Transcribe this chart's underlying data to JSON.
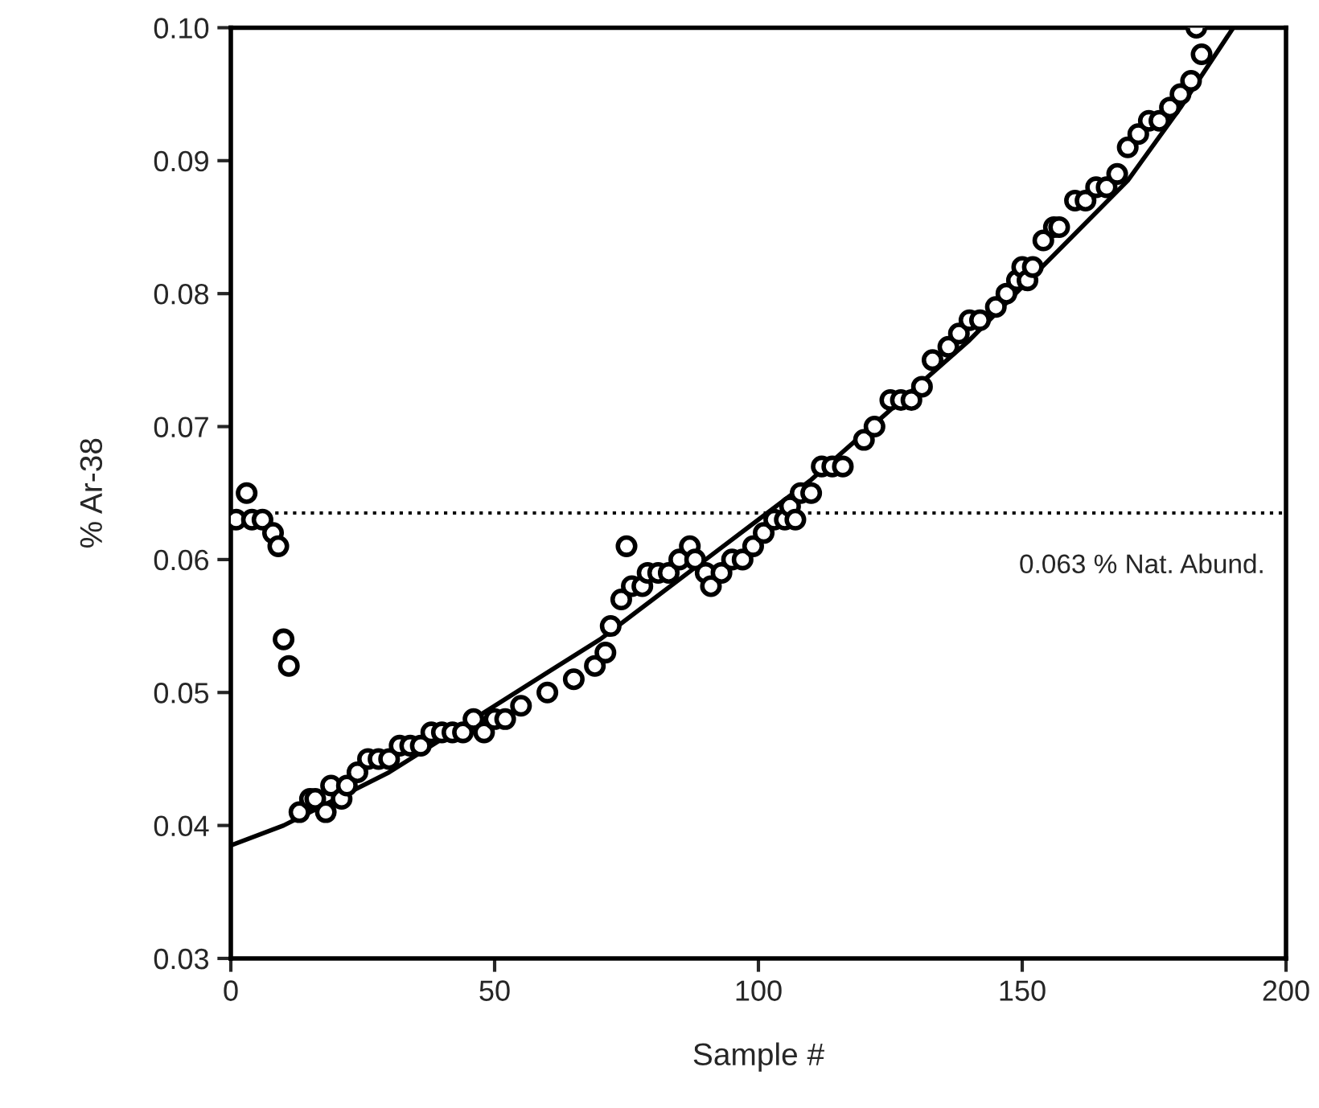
{
  "chart_data": {
    "type": "scatter",
    "xlabel": "Sample #",
    "ylabel": "% Ar-38",
    "series": [
      {
        "color": "#000000",
        "marker": "circle",
        "x": [
          1,
          3,
          4,
          6,
          8,
          9,
          10,
          11,
          13,
          15,
          16,
          18,
          19,
          21,
          22,
          24,
          26,
          28,
          30,
          32,
          34,
          36,
          38,
          40,
          42,
          44,
          46,
          48,
          50,
          52,
          55,
          60,
          65,
          69,
          71,
          72,
          74,
          75,
          76,
          78,
          79,
          81,
          83,
          85,
          87,
          88,
          90,
          91,
          93,
          95,
          97,
          99,
          101,
          103,
          105,
          106,
          107,
          108,
          110,
          112,
          114,
          116,
          120,
          122,
          125,
          127,
          129,
          131,
          133,
          136,
          138,
          140,
          142,
          145,
          147,
          149,
          150,
          151,
          152,
          154,
          156,
          157,
          160,
          162,
          164,
          166,
          168,
          170,
          172,
          174,
          176,
          178,
          180,
          182,
          183,
          184
        ],
        "values": [
          0.063,
          0.065,
          0.063,
          0.063,
          0.062,
          0.061,
          0.054,
          0.052,
          0.041,
          0.042,
          0.042,
          0.041,
          0.043,
          0.042,
          0.043,
          0.044,
          0.045,
          0.045,
          0.045,
          0.046,
          0.046,
          0.046,
          0.047,
          0.047,
          0.047,
          0.047,
          0.048,
          0.047,
          0.048,
          0.048,
          0.049,
          0.05,
          0.051,
          0.052,
          0.053,
          0.055,
          0.057,
          0.061,
          0.058,
          0.058,
          0.059,
          0.059,
          0.059,
          0.06,
          0.061,
          0.06,
          0.059,
          0.058,
          0.059,
          0.06,
          0.06,
          0.061,
          0.062,
          0.063,
          0.063,
          0.064,
          0.063,
          0.065,
          0.065,
          0.067,
          0.067,
          0.067,
          0.069,
          0.07,
          0.072,
          0.072,
          0.072,
          0.073,
          0.075,
          0.076,
          0.077,
          0.078,
          0.078,
          0.079,
          0.08,
          0.081,
          0.082,
          0.081,
          0.082,
          0.084,
          0.085,
          0.085,
          0.087,
          0.087,
          0.088,
          0.088,
          0.089,
          0.091,
          0.092,
          0.093,
          0.093,
          0.094,
          0.095,
          0.096,
          0.1,
          0.098
        ]
      },
      {
        "type": "line",
        "color": "#000000",
        "line_style": "solid",
        "x": [
          0,
          10,
          20,
          30,
          40,
          50,
          60,
          70,
          80,
          90,
          100,
          110,
          120,
          130,
          140,
          150,
          160,
          170,
          180,
          190
        ],
        "values": [
          0.0385,
          0.04,
          0.042,
          0.044,
          0.0465,
          0.049,
          0.0515,
          0.054,
          0.057,
          0.06,
          0.063,
          0.066,
          0.0695,
          0.073,
          0.0765,
          0.0805,
          0.0845,
          0.0885,
          0.094,
          0.1
        ]
      }
    ],
    "ref_lines": [
      {
        "axis": "y",
        "value": 0.0635,
        "label": "0.063 % Nat. Abund.",
        "color": "#000000",
        "line_style": "dotted"
      }
    ],
    "xlim": [
      0,
      200
    ],
    "xticks": [
      0,
      50,
      100,
      150,
      200
    ],
    "ylim": [
      0.03,
      0.1
    ],
    "yticks": [
      {
        "value": 0.03,
        "label": "0.03"
      },
      {
        "value": 0.04,
        "label": "0.04"
      },
      {
        "value": 0.05,
        "label": "0.05"
      },
      {
        "value": 0.06,
        "label": "0.06"
      },
      {
        "value": 0.07,
        "label": "0.07"
      },
      {
        "value": 0.08,
        "label": "0.08"
      },
      {
        "value": 0.09,
        "label": "0.09"
      },
      {
        "value": 0.1,
        "label": "0.10"
      }
    ],
    "grid": false,
    "legend": false
  }
}
